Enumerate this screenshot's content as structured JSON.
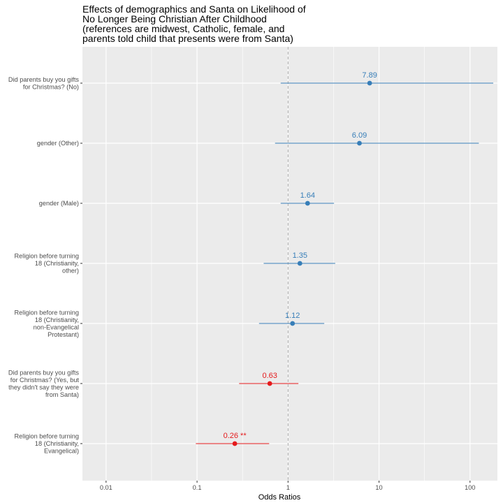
{
  "chart_data": {
    "type": "forest",
    "title_lines": [
      "Effects of demographics and Santa on Likelihood of",
      "No Longer Being Christian After Childhood",
      "(references are midwest, Catholic, female, and",
      "parents told child that presents were from Santa)"
    ],
    "xlabel": "Odds Ratios",
    "x_scale": "log",
    "xlim": [
      0.0055,
      200
    ],
    "x_ticks": [
      {
        "value": 0.01,
        "label": "0.01"
      },
      {
        "value": 0.1,
        "label": "0.1"
      },
      {
        "value": 1,
        "label": "1"
      },
      {
        "value": 10,
        "label": "10"
      },
      {
        "value": 100,
        "label": "100"
      }
    ],
    "reference_line": 1,
    "grid": true,
    "colors": {
      "positive": "#377eb8",
      "negative": "#e41a1c",
      "panel": "#ebebeb",
      "grid": "#ffffff"
    },
    "rows": [
      {
        "label_lines": [
          "Did parents buy you gifts",
          "for Christmas? (No)"
        ],
        "estimate": 7.89,
        "ci": [
          0.83,
          180
        ],
        "label": "7.89",
        "direction": "positive"
      },
      {
        "label_lines": [
          "gender (Other)"
        ],
        "estimate": 6.09,
        "ci": [
          0.72,
          125
        ],
        "label": "6.09",
        "direction": "positive"
      },
      {
        "label_lines": [
          "gender (Male)"
        ],
        "estimate": 1.64,
        "ci": [
          0.83,
          3.2
        ],
        "label": "1.64",
        "direction": "positive"
      },
      {
        "label_lines": [
          "Religion before turning",
          "18 (Christianity,",
          "other)"
        ],
        "estimate": 1.35,
        "ci": [
          0.54,
          3.3
        ],
        "label": "1.35",
        "direction": "positive"
      },
      {
        "label_lines": [
          "Religion before turning",
          "18 (Christianity,",
          "non-Evangelical",
          "Protestant)"
        ],
        "estimate": 1.12,
        "ci": [
          0.48,
          2.5
        ],
        "label": "1.12",
        "direction": "positive"
      },
      {
        "label_lines": [
          "Did parents buy you gifts",
          "for Christmas? (Yes, but",
          "they didn't say they were",
          "from Santa)"
        ],
        "estimate": 0.63,
        "ci": [
          0.29,
          1.3
        ],
        "label": "0.63",
        "direction": "negative"
      },
      {
        "label_lines": [
          "Religion before turning",
          "18 (Christianity,",
          "Evangelical)"
        ],
        "estimate": 0.26,
        "ci": [
          0.097,
          0.62
        ],
        "label": "0.26 **",
        "direction": "negative"
      }
    ]
  }
}
